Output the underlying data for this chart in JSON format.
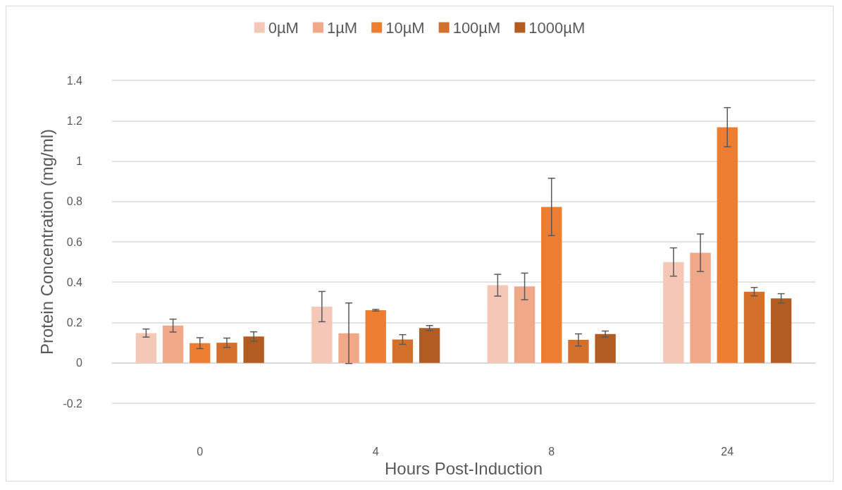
{
  "chart_data": {
    "type": "bar",
    "xlabel": "Hours Post-Induction",
    "ylabel": "Protein Concentration (mg/ml)",
    "categories": [
      "0",
      "4",
      "8",
      "24"
    ],
    "series": [
      {
        "name": "0µM",
        "color": "#f4c7b7",
        "values": [
          0.148,
          0.279,
          0.385,
          0.5
        ],
        "errors": [
          0.02,
          0.075,
          0.054,
          0.07
        ]
      },
      {
        "name": "1µM",
        "color": "#f0a888",
        "values": [
          0.185,
          0.147,
          0.379,
          0.546
        ],
        "errors": [
          0.032,
          0.15,
          0.066,
          0.093
        ]
      },
      {
        "name": "10µM",
        "color": "#ed7d31",
        "values": [
          0.098,
          0.261,
          0.773,
          1.168
        ],
        "errors": [
          0.027,
          0.004,
          0.142,
          0.097
        ]
      },
      {
        "name": "100µM",
        "color": "#d2702c",
        "values": [
          0.1,
          0.116,
          0.114,
          0.353
        ],
        "errors": [
          0.023,
          0.024,
          0.03,
          0.021
        ]
      },
      {
        "name": "1000µM",
        "color": "#b35c22",
        "values": [
          0.131,
          0.173,
          0.143,
          0.32
        ],
        "errors": [
          0.023,
          0.012,
          0.015,
          0.023
        ]
      }
    ],
    "ylim": [
      -0.2,
      1.4
    ],
    "yticks": [
      -0.2,
      0,
      0.2,
      0.4,
      0.6,
      0.8,
      1,
      1.2,
      1.4
    ],
    "grid": "y",
    "legend": "top"
  }
}
